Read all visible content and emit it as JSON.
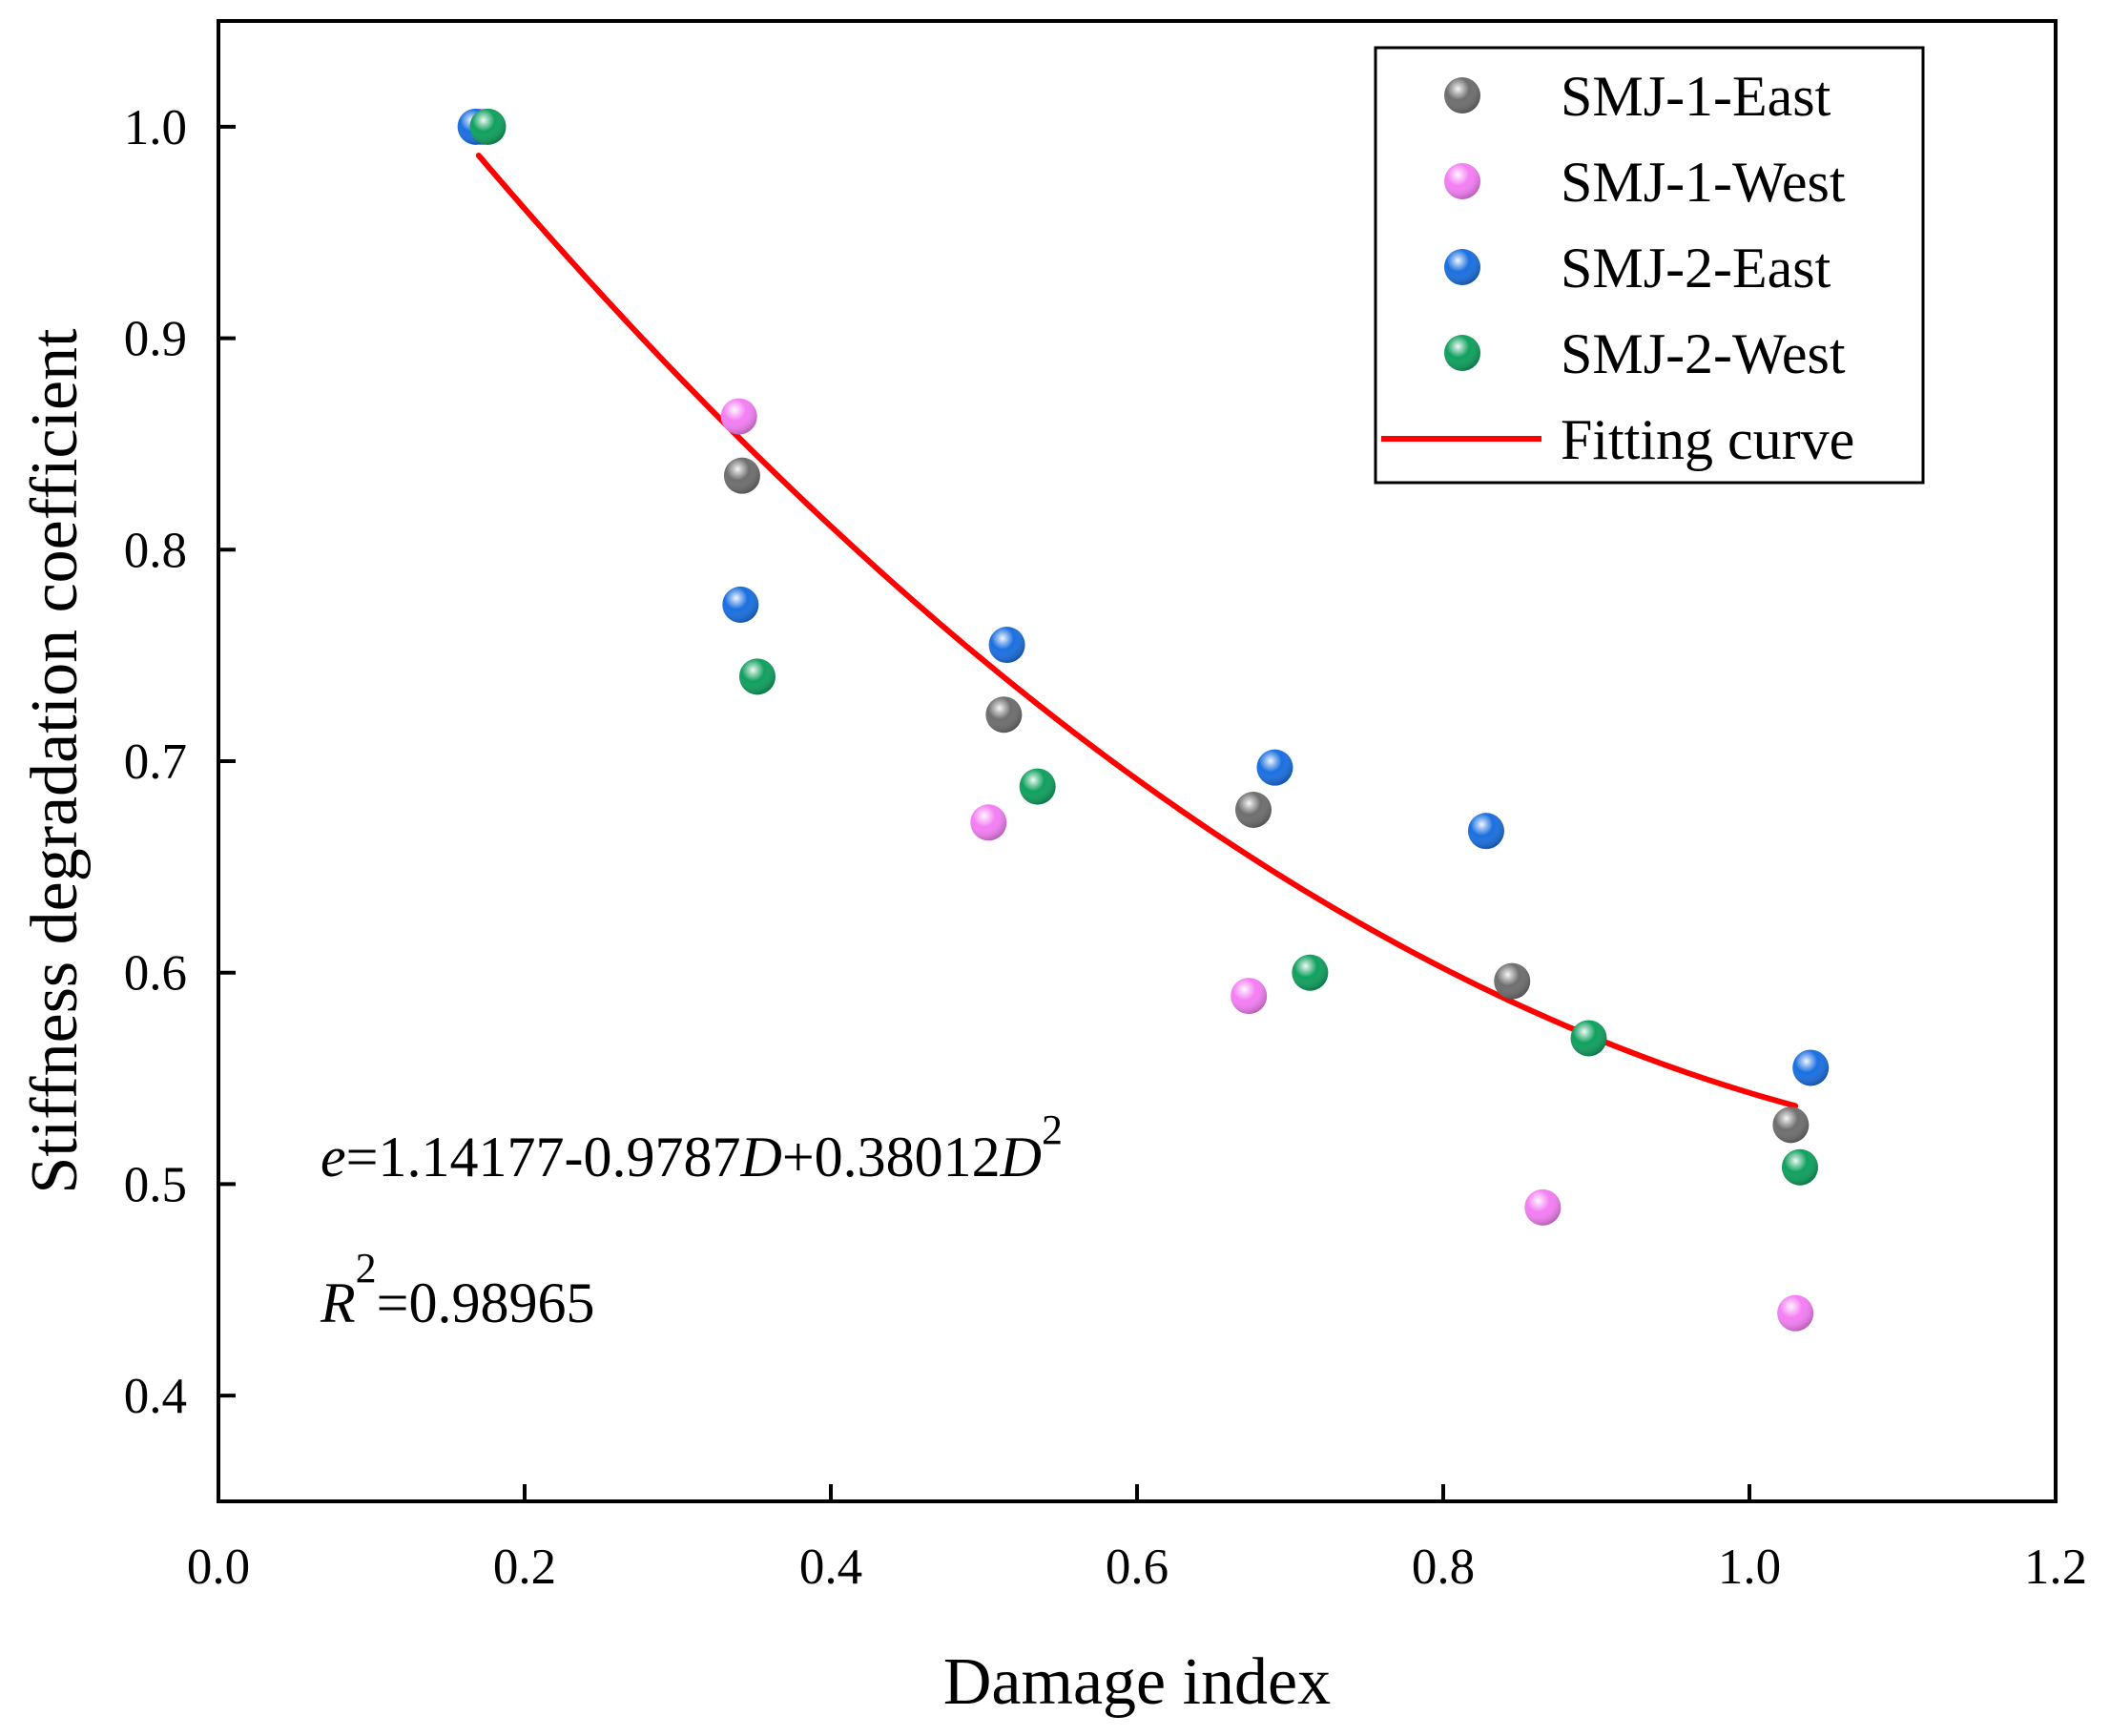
{
  "chart_data": {
    "type": "scatter",
    "xlabel": "Damage index",
    "ylabel": "Stiffness degradation coefficient",
    "xlim": [
      0.0,
      1.2
    ],
    "ylim": [
      0.35,
      1.05
    ],
    "xticks": [
      0.0,
      0.2,
      0.4,
      0.6,
      0.8,
      1.0,
      1.2
    ],
    "xtick_labels": [
      "0.0",
      "0.2",
      "0.4",
      "0.6",
      "0.8",
      "1.0",
      "1.2"
    ],
    "yticks": [
      0.4,
      0.5,
      0.6,
      0.7,
      0.8,
      0.9,
      1.0
    ],
    "ytick_labels": [
      "0.4",
      "0.5",
      "0.6",
      "0.7",
      "0.8",
      "0.9",
      "1.0"
    ],
    "grid": false,
    "legend_position": "top-right",
    "series": [
      {
        "name": "SMJ-1-East",
        "color": "#6e6e6e",
        "x": [
          0.172,
          0.342,
          0.513,
          0.676,
          0.845,
          1.027
        ],
        "y": [
          1.0,
          0.835,
          0.722,
          0.677,
          0.596,
          0.528
        ]
      },
      {
        "name": "SMJ-1-West",
        "color": "#f47ef4",
        "x": [
          0.172,
          0.34,
          0.503,
          0.673,
          0.865,
          1.03
        ],
        "y": [
          1.0,
          0.863,
          0.671,
          0.589,
          0.489,
          0.439
        ]
      },
      {
        "name": "SMJ-2-East",
        "color": "#1a6fe0",
        "x": [
          0.168,
          0.341,
          0.515,
          0.69,
          0.828,
          1.04
        ],
        "y": [
          1.0,
          0.774,
          0.755,
          0.697,
          0.667,
          0.555
        ]
      },
      {
        "name": "SMJ-2-West",
        "color": "#0fa05e",
        "x": [
          0.176,
          0.352,
          0.535,
          0.713,
          0.895,
          1.033
        ],
        "y": [
          1.0,
          0.74,
          0.688,
          0.6,
          0.569,
          0.508
        ]
      }
    ],
    "fit": {
      "name": "Fitting curve",
      "color": "#ff0000",
      "coefficients": [
        1.14177,
        -0.9787,
        0.38012
      ],
      "x_range": [
        0.17,
        1.03
      ]
    },
    "annotations": {
      "equation": {
        "e": "e",
        "eq_part1": "=1.14177-0.9787",
        "D1": "D",
        "eq_part2": "+0.38012",
        "D2": "D",
        "exp": "2"
      },
      "r2": {
        "R": "R",
        "exp": "2",
        "value": "=0.98965"
      }
    }
  }
}
